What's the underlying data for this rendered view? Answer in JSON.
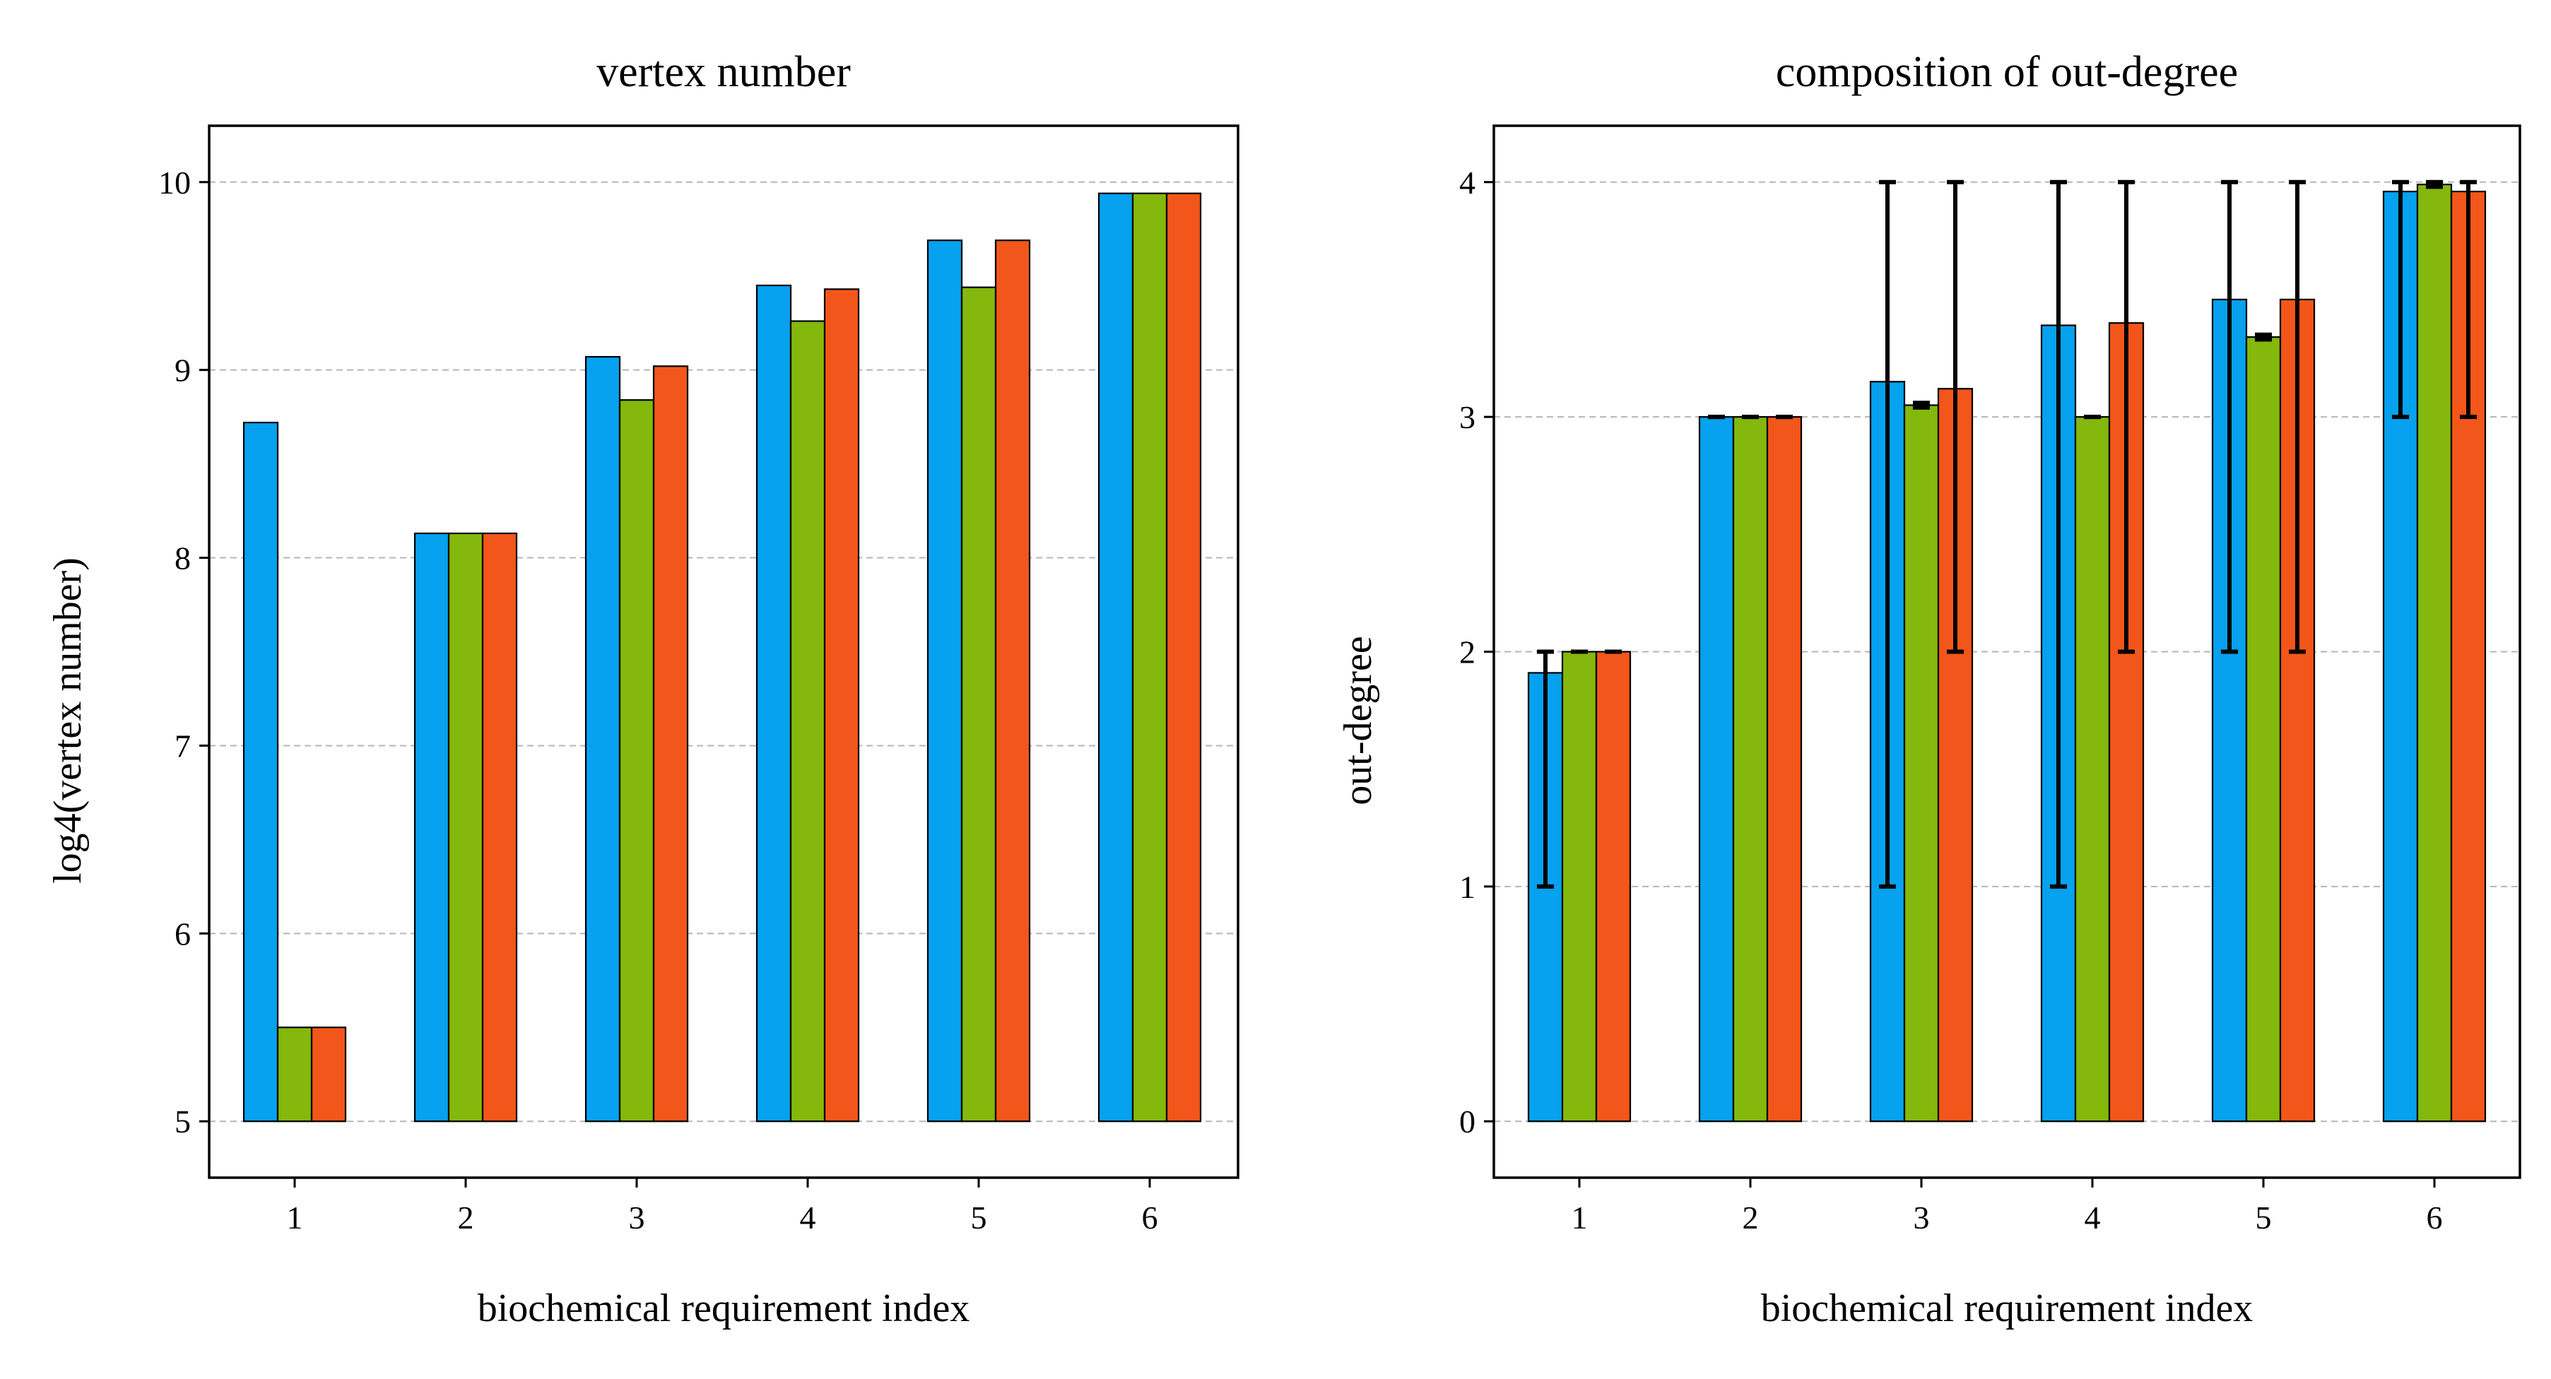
{
  "colors": {
    "series": [
      "#06a1ef",
      "#84b80c",
      "#f3561a"
    ],
    "grid": "#b5b5b5",
    "errorbar": "#000000",
    "edge": "#000000"
  },
  "chart_data": [
    {
      "type": "bar",
      "title": "vertex number",
      "xlabel": "biochemical requirement index",
      "ylabel": "log4(vertex number)",
      "categories": [
        "1",
        "2",
        "3",
        "4",
        "5",
        "6"
      ],
      "ylim": [
        4.7,
        10.3
      ],
      "bar_base": 5,
      "yticks": [
        5,
        6,
        7,
        8,
        9,
        10
      ],
      "grid": "y-dashed",
      "series": [
        {
          "values": [
            8.72,
            8.13,
            9.07,
            9.45,
            9.69,
            9.94
          ]
        },
        {
          "values": [
            5.5,
            8.13,
            8.84,
            9.26,
            9.44,
            9.94
          ]
        },
        {
          "values": [
            5.5,
            8.13,
            9.02,
            9.43,
            9.69,
            9.94
          ]
        }
      ]
    },
    {
      "type": "bar",
      "title": "composition of out-degree",
      "xlabel": "biochemical requirement index",
      "ylabel": "out-degree",
      "categories": [
        "1",
        "2",
        "3",
        "4",
        "5",
        "6"
      ],
      "ylim": [
        -0.24,
        4.24
      ],
      "bar_base": 0,
      "yticks": [
        0,
        1,
        2,
        3,
        4
      ],
      "grid": "y-dashed",
      "series": [
        {
          "values": [
            1.91,
            3.0,
            3.15,
            3.39,
            3.5,
            3.96
          ],
          "err_low": [
            1,
            3,
            1,
            1,
            2,
            3
          ],
          "err_high": [
            2,
            3,
            4,
            4,
            4,
            4
          ]
        },
        {
          "values": [
            2.0,
            3.0,
            3.05,
            3.0,
            3.34,
            3.99
          ],
          "err_low": [
            2,
            3,
            3.04,
            3,
            3.33,
            3.98
          ],
          "err_high": [
            2,
            3,
            3.06,
            3,
            3.35,
            4
          ]
        },
        {
          "values": [
            2.0,
            3.0,
            3.12,
            3.4,
            3.5,
            3.96
          ],
          "err_low": [
            2,
            3,
            2,
            2,
            2,
            3
          ],
          "err_high": [
            2,
            3,
            4,
            4,
            4,
            4
          ]
        }
      ]
    }
  ]
}
